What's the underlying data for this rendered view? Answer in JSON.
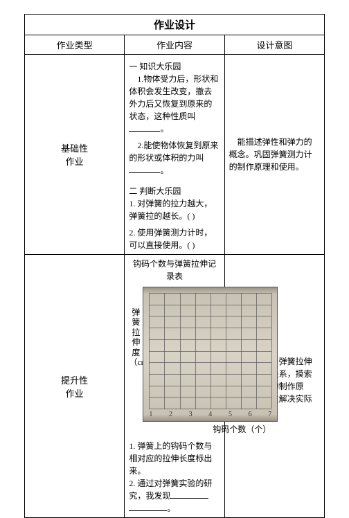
{
  "title": "作业设计",
  "headers": {
    "type": "作业类型",
    "content": "作业内容",
    "intent": "设计意图"
  },
  "rows": [
    {
      "type_label": "基础性\n作业",
      "content": {
        "section1_title": "一  知识大乐园",
        "item1_prefix": "1.物体受力后，形状和体积会发生改变，撤去外力后又恢复到原来的状态，这种性质叫",
        "item1_suffix": "。",
        "item2_prefix": "2.能使物体恢复到原来的形状或体积的力叫",
        "item2_suffix": "。",
        "section2_title": "二  判断大乐园",
        "judge1": "1. 对弹簧的拉力越大，弹簧拉的越长。(        )",
        "judge2": "2. 使用弹簧测力计时，可以直接使用。(        )"
      },
      "intent": "能描述弹性和弹力的概念。巩固弹簧测力计的制作原理和使用。"
    },
    {
      "type_label": "提升性\n作业",
      "content": {
        "chart_title": "钩码个数与弹簧拉伸记录表",
        "ylabel": "弹簧拉伸度（cm）",
        "xlabel": "钩码个数（个）",
        "chart": {
          "type": "grid",
          "rows": 10,
          "cols": 8,
          "background_color": "#d8d3c6",
          "grid_color": "#555",
          "xticks": [
            "1",
            "2",
            "3",
            "4",
            "5",
            "6",
            "7"
          ]
        },
        "q1_prefix": "1. 弹簧上的钩码个数与相对应的拉伸长度标出来。",
        "q2_prefix": "2. 通过对弹簧实验的研究，我发现",
        "q2_suffix": "。"
      },
      "intent": "知道拉力与弹簧拉伸长度之间的关系，摸索弹簧测力计的制作原理，培养学生解决实际问题能力。"
    }
  ]
}
